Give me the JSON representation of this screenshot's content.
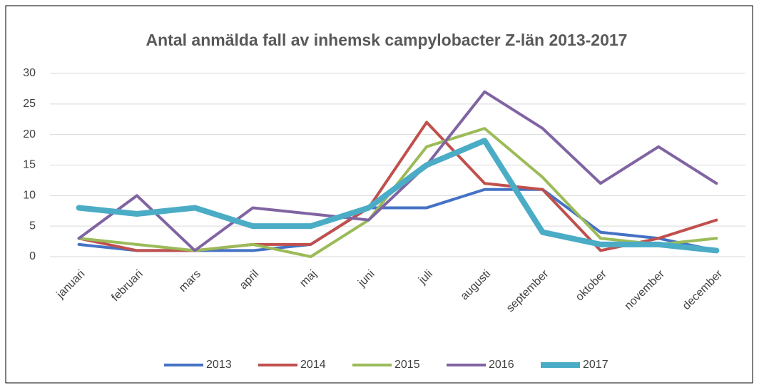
{
  "chart_data": {
    "type": "line",
    "title": "Antal anmälda fall av inhemsk campylobacter Z-län 2013-2017",
    "categories": [
      "januari",
      "februari",
      "mars",
      "april",
      "maj",
      "juni",
      "juli",
      "augusti",
      "september",
      "oktober",
      "november",
      "december"
    ],
    "series": [
      {
        "name": "2013",
        "color": "#4472c4",
        "line_width": 4,
        "values": [
          2,
          1,
          1,
          1,
          2,
          8,
          8,
          11,
          11,
          4,
          3,
          1
        ]
      },
      {
        "name": "2014",
        "color": "#c0504d",
        "line_width": 4,
        "values": [
          3,
          1,
          1,
          2,
          2,
          8,
          22,
          12,
          11,
          1,
          3,
          6
        ]
      },
      {
        "name": "2015",
        "color": "#9bbb59",
        "line_width": 4,
        "values": [
          3,
          2,
          1,
          2,
          0,
          6,
          18,
          21,
          13,
          3,
          2,
          3
        ]
      },
      {
        "name": "2016",
        "color": "#8064a2",
        "line_width": 4,
        "values": [
          3,
          10,
          1,
          8,
          7,
          6,
          15,
          27,
          21,
          12,
          18,
          12
        ]
      },
      {
        "name": "2017",
        "color": "#4bacc6",
        "line_width": 8,
        "values": [
          8,
          7,
          8,
          5,
          5,
          8,
          15,
          19,
          4,
          2,
          2,
          1
        ]
      }
    ],
    "ylim": [
      0,
      30
    ],
    "yticks": [
      0,
      5,
      10,
      15,
      20,
      25,
      30
    ],
    "grid": true,
    "legend": "bottom"
  }
}
